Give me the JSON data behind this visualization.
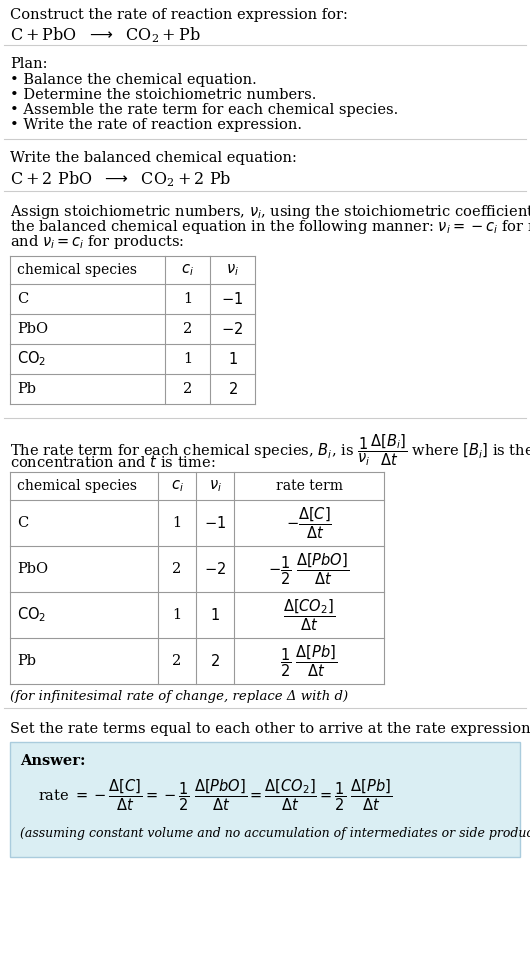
{
  "title_line1": "Construct the rate of reaction expression for:",
  "plan_header": "Plan:",
  "plan_items": [
    "• Balance the chemical equation.",
    "• Determine the stoichiometric numbers.",
    "• Assemble the rate term for each chemical species.",
    "• Write the rate of reaction expression."
  ],
  "balanced_header": "Write the balanced chemical equation:",
  "table1_headers": [
    "chemical species",
    "c_i",
    "nu_i"
  ],
  "table1_rows": [
    [
      "C",
      "1",
      "-1"
    ],
    [
      "PbO",
      "2",
      "-2"
    ],
    [
      "CO2",
      "1",
      "1"
    ],
    [
      "Pb",
      "2",
      "2"
    ]
  ],
  "table2_headers": [
    "chemical species",
    "c_i",
    "nu_i",
    "rate term"
  ],
  "table2_rows": [
    [
      "C",
      "1",
      "-1",
      "C"
    ],
    [
      "PbO",
      "2",
      "-2",
      "PbO"
    ],
    [
      "CO2",
      "1",
      "1",
      "CO2"
    ],
    [
      "Pb",
      "2",
      "2",
      "Pb"
    ]
  ],
  "infinitesimal_note": "(for infinitesimal rate of change, replace Δ with d)",
  "set_equal_text": "Set the rate terms equal to each other to arrive at the rate expression:",
  "answer_label": "Answer:",
  "answer_box_color": "#daeef3",
  "bg_color": "#ffffff",
  "text_color": "#000000",
  "assuming_note": "(assuming constant volume and no accumulation of intermediates or side products)",
  "font_size": 10.5
}
